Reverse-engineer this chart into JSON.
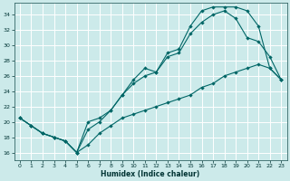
{
  "xlabel": "Humidex (Indice chaleur)",
  "bg_color": "#cceaea",
  "grid_color": "#b0d8d8",
  "line_color": "#006666",
  "xlim": [
    -0.5,
    23.5
  ],
  "ylim": [
    15.0,
    35.5
  ],
  "xticks": [
    0,
    1,
    2,
    3,
    4,
    5,
    6,
    7,
    8,
    9,
    10,
    11,
    12,
    13,
    14,
    15,
    16,
    17,
    18,
    19,
    20,
    21,
    22,
    23
  ],
  "yticks": [
    16,
    18,
    20,
    22,
    24,
    26,
    28,
    30,
    32,
    34
  ],
  "curve1_x": [
    0,
    1,
    2,
    3,
    4,
    5,
    6,
    7,
    8,
    9,
    10,
    11,
    12,
    13,
    14,
    15,
    16,
    17,
    18,
    19,
    20,
    21,
    22,
    23
  ],
  "curve1_y": [
    20.5,
    19.5,
    18.5,
    18.0,
    17.5,
    16.0,
    20.0,
    20.5,
    21.5,
    23.5,
    25.5,
    27.0,
    26.5,
    29.0,
    29.5,
    32.5,
    34.5,
    35.0,
    35.0,
    35.0,
    34.5,
    32.5,
    27.0,
    25.5
  ],
  "curve2_x": [
    0,
    1,
    2,
    3,
    4,
    5,
    6,
    7,
    8,
    9,
    10,
    11,
    12,
    13,
    14,
    15,
    16,
    17,
    18,
    19,
    20,
    21,
    22,
    23
  ],
  "curve2_y": [
    20.5,
    19.5,
    18.5,
    18.0,
    17.5,
    16.0,
    19.0,
    20.0,
    21.5,
    23.5,
    25.0,
    26.0,
    26.5,
    28.5,
    29.0,
    31.5,
    33.0,
    34.0,
    34.5,
    33.5,
    31.0,
    30.5,
    28.5,
    25.5
  ],
  "curve3_x": [
    0,
    1,
    2,
    3,
    4,
    5,
    6,
    7,
    8,
    9,
    10,
    11,
    12,
    13,
    14,
    15,
    16,
    17,
    18,
    19,
    20,
    21,
    22,
    23
  ],
  "curve3_y": [
    20.5,
    19.5,
    18.5,
    18.0,
    17.5,
    16.0,
    17.0,
    18.5,
    19.5,
    20.5,
    21.0,
    21.5,
    22.0,
    22.5,
    23.0,
    23.5,
    24.5,
    25.0,
    26.0,
    26.5,
    27.0,
    27.5,
    27.0,
    25.5
  ]
}
